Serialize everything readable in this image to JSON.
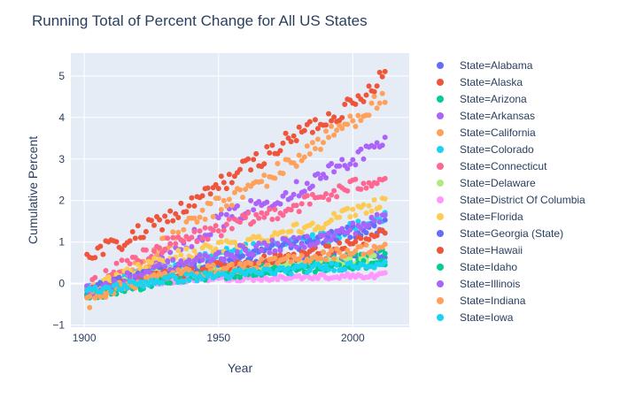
{
  "chart_data": {
    "type": "scatter",
    "title": "Running Total of Percent Change for All US States",
    "xlabel": "Year",
    "ylabel": "Cumulative Percent",
    "xlim": [
      1895,
      2021
    ],
    "ylim": [
      -1.05,
      5.55
    ],
    "xticks": [
      1900,
      1950,
      2000
    ],
    "yticks": [
      -1,
      0,
      1,
      2,
      3,
      4,
      5
    ],
    "grid": true,
    "legend_position": "right",
    "series": [
      {
        "name": "State=Alabama",
        "color": "#636efa",
        "trend": [
          [
            1901,
            -0.2
          ],
          [
            1915,
            -0.05
          ],
          [
            1940,
            0.35
          ],
          [
            1970,
            0.45
          ],
          [
            2012,
            0.7
          ]
        ],
        "spread": 0.12
      },
      {
        "name": "State=Alaska",
        "color": "#EF553B",
        "trend": [
          [
            1901,
            0.7
          ],
          [
            1915,
            1.0
          ],
          [
            1940,
            1.9
          ],
          [
            1960,
            2.8
          ],
          [
            1985,
            3.8
          ],
          [
            2000,
            4.3
          ],
          [
            2012,
            5.1
          ]
        ],
        "spread": 0.22
      },
      {
        "name": "State=Arizona",
        "color": "#00cc96",
        "trend": [
          [
            1901,
            -0.3
          ],
          [
            1915,
            -0.1
          ],
          [
            1950,
            0.3
          ],
          [
            1990,
            0.5
          ],
          [
            2012,
            0.8
          ]
        ],
        "spread": 0.12
      },
      {
        "name": "State=Arkansas",
        "color": "#ab63fa",
        "trend": [
          [
            1901,
            -0.3
          ],
          [
            1920,
            0.2
          ],
          [
            1950,
            1.5
          ],
          [
            1980,
            2.3
          ],
          [
            2000,
            3.0
          ],
          [
            2012,
            3.4
          ]
        ],
        "spread": 0.2
      },
      {
        "name": "State=California",
        "color": "#FFA15A",
        "trend": [
          [
            1901,
            -0.4
          ],
          [
            1920,
            0.4
          ],
          [
            1945,
            1.7
          ],
          [
            1970,
            2.6
          ],
          [
            1990,
            3.5
          ],
          [
            2012,
            4.5
          ]
        ],
        "spread": 0.22
      },
      {
        "name": "State=Colorado",
        "color": "#19d3f3",
        "trend": [
          [
            1901,
            -0.2
          ],
          [
            1925,
            0.3
          ],
          [
            1960,
            0.8
          ],
          [
            1990,
            1.1
          ],
          [
            2012,
            1.6
          ]
        ],
        "spread": 0.15
      },
      {
        "name": "State=Connecticut",
        "color": "#FF6692",
        "trend": [
          [
            1901,
            -0.1
          ],
          [
            1925,
            0.8
          ],
          [
            1950,
            1.3
          ],
          [
            1980,
            1.9
          ],
          [
            2012,
            2.6
          ]
        ],
        "spread": 0.18
      },
      {
        "name": "State=Delaware",
        "color": "#B6E880",
        "trend": [
          [
            1901,
            -0.2
          ],
          [
            1930,
            0.3
          ],
          [
            1970,
            0.4
          ],
          [
            2012,
            0.6
          ]
        ],
        "spread": 0.1
      },
      {
        "name": "State=District Of Columbia",
        "color": "#FF97FF",
        "trend": [
          [
            1901,
            -0.1
          ],
          [
            1940,
            0.1
          ],
          [
            2012,
            0.2
          ]
        ],
        "spread": 0.06
      },
      {
        "name": "State=Florida",
        "color": "#FECB52",
        "trend": [
          [
            1901,
            -0.2
          ],
          [
            1930,
            0.6
          ],
          [
            1960,
            1.0
          ],
          [
            1990,
            1.5
          ],
          [
            2012,
            2.0
          ]
        ],
        "spread": 0.15
      },
      {
        "name": "State=Georgia (State)",
        "color": "#636efa",
        "trend": [
          [
            1901,
            -0.2
          ],
          [
            1925,
            0.2
          ],
          [
            1960,
            0.7
          ],
          [
            1990,
            1.1
          ],
          [
            2012,
            1.4
          ]
        ],
        "spread": 0.15
      },
      {
        "name": "State=Hawaii",
        "color": "#EF553B",
        "trend": [
          [
            1901,
            -0.2
          ],
          [
            1930,
            0.2
          ],
          [
            1960,
            0.5
          ],
          [
            1990,
            0.8
          ],
          [
            2012,
            1.2
          ]
        ],
        "spread": 0.12
      },
      {
        "name": "State=Idaho",
        "color": "#00cc96",
        "trend": [
          [
            1901,
            -0.3
          ],
          [
            1930,
            0.1
          ],
          [
            1970,
            0.3
          ],
          [
            2012,
            0.5
          ]
        ],
        "spread": 0.1
      },
      {
        "name": "State=Illinois",
        "color": "#ab63fa",
        "trend": [
          [
            1901,
            -0.2
          ],
          [
            1930,
            0.4
          ],
          [
            1960,
            0.8
          ],
          [
            1990,
            1.1
          ],
          [
            2012,
            1.6
          ]
        ],
        "spread": 0.15
      },
      {
        "name": "State=Indiana",
        "color": "#FFA15A",
        "trend": [
          [
            1901,
            -0.3
          ],
          [
            1930,
            0.2
          ],
          [
            1970,
            0.5
          ],
          [
            2012,
            0.9
          ]
        ],
        "spread": 0.12
      },
      {
        "name": "State=Iowa",
        "color": "#19d3f3",
        "trend": [
          [
            1901,
            -0.2
          ],
          [
            1930,
            0.1
          ],
          [
            1970,
            0.3
          ],
          [
            2012,
            0.5
          ]
        ],
        "spread": 0.1
      }
    ]
  }
}
